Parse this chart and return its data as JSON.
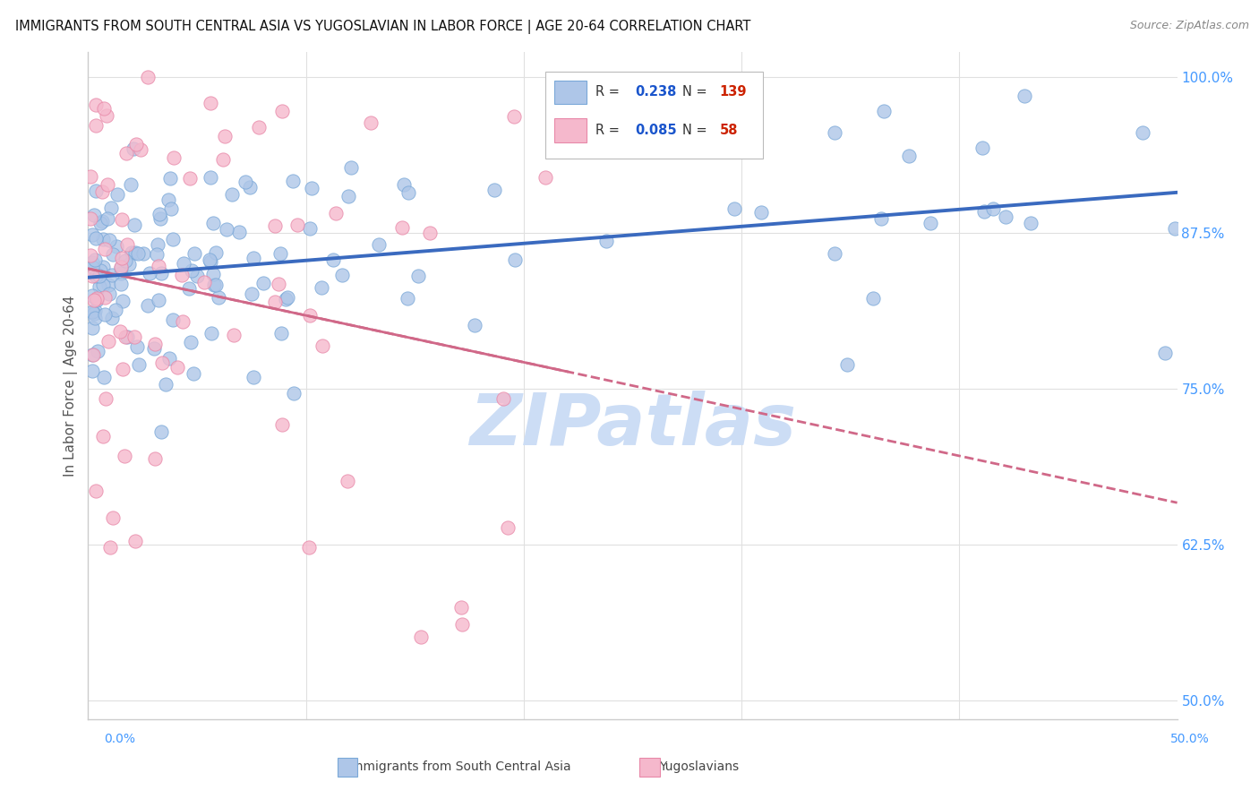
{
  "title": "IMMIGRANTS FROM SOUTH CENTRAL ASIA VS YUGOSLAVIAN IN LABOR FORCE | AGE 20-64 CORRELATION CHART",
  "source": "Source: ZipAtlas.com",
  "ylabel": "In Labor Force | Age 20-64",
  "yticks": [
    "50.0%",
    "62.5%",
    "75.0%",
    "87.5%",
    "100.0%"
  ],
  "ytick_values": [
    0.5,
    0.625,
    0.75,
    0.875,
    1.0
  ],
  "xlim": [
    0.0,
    0.5
  ],
  "ylim": [
    0.485,
    1.02
  ],
  "blue_R": "0.238",
  "blue_N": "139",
  "pink_R": "0.085",
  "pink_N": "58",
  "blue_color": "#aec6e8",
  "pink_color": "#f5b8cc",
  "blue_edge": "#7aa8d8",
  "pink_edge": "#e888a8",
  "trend_blue": "#3a6abf",
  "trend_pink": "#d06888",
  "legend_R_color": "#1a55cc",
  "legend_N_color": "#cc2200",
  "background_color": "#ffffff",
  "grid_color": "#e0e0e0",
  "title_color": "#111111",
  "source_color": "#888888",
  "watermark_color": "#ccddf5",
  "ylabel_color": "#555555"
}
